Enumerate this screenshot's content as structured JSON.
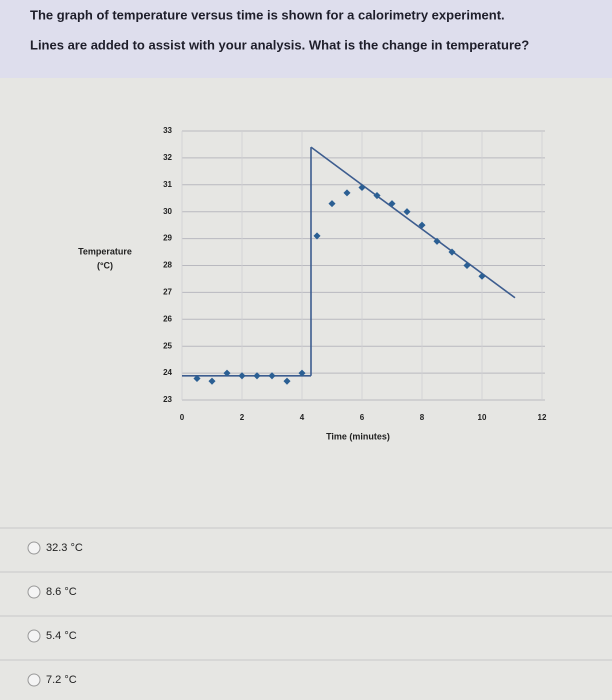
{
  "question": {
    "lines": [
      "The graph of temperature versus time is shown for a calorimetry experiment.",
      "Lines are added to assist with your analysis. What is the change in temperature?"
    ]
  },
  "chart_data": {
    "type": "scatter",
    "x_label": "Time (minutes)",
    "y_label_lines": [
      "Temperature",
      "(°C)"
    ],
    "xlim": [
      0,
      12
    ],
    "xticks": [
      0,
      2,
      4,
      6,
      8,
      10,
      12
    ],
    "ylim": [
      23,
      33
    ],
    "yticks": [
      23,
      24,
      25,
      26,
      27,
      28,
      29,
      30,
      31,
      32,
      33
    ],
    "grid": true,
    "series": [
      {
        "color": "#2b5f93",
        "x": [
          0.5,
          1,
          1.5,
          2,
          2.5,
          3,
          3.5,
          4,
          4.5,
          5,
          5.5,
          6,
          6.5,
          7,
          7.5,
          8,
          8.5,
          9,
          9.5,
          10
        ],
        "values": [
          23.8,
          23.7,
          24.0,
          23.9,
          23.9,
          23.9,
          23.7,
          24.0,
          29.1,
          30.3,
          30.7,
          30.9,
          30.6,
          30.3,
          30.0,
          29.5,
          28.9,
          28.5,
          28.0,
          27.6
        ]
      }
    ],
    "lines": [
      {
        "color": "#3d5d8f",
        "x": [
          0,
          4.3
        ],
        "values": [
          23.9,
          23.9
        ]
      },
      {
        "color": "#3d5d8f",
        "x": [
          4.3,
          4.3
        ],
        "values": [
          23.9,
          32.4
        ]
      },
      {
        "color": "#3d5d8f",
        "x": [
          4.3,
          11.1
        ],
        "values": [
          32.4,
          26.8
        ]
      }
    ]
  },
  "options": [
    "32.3 °C",
    "8.6 °C",
    "5.4 °C",
    "7.2 °C"
  ]
}
